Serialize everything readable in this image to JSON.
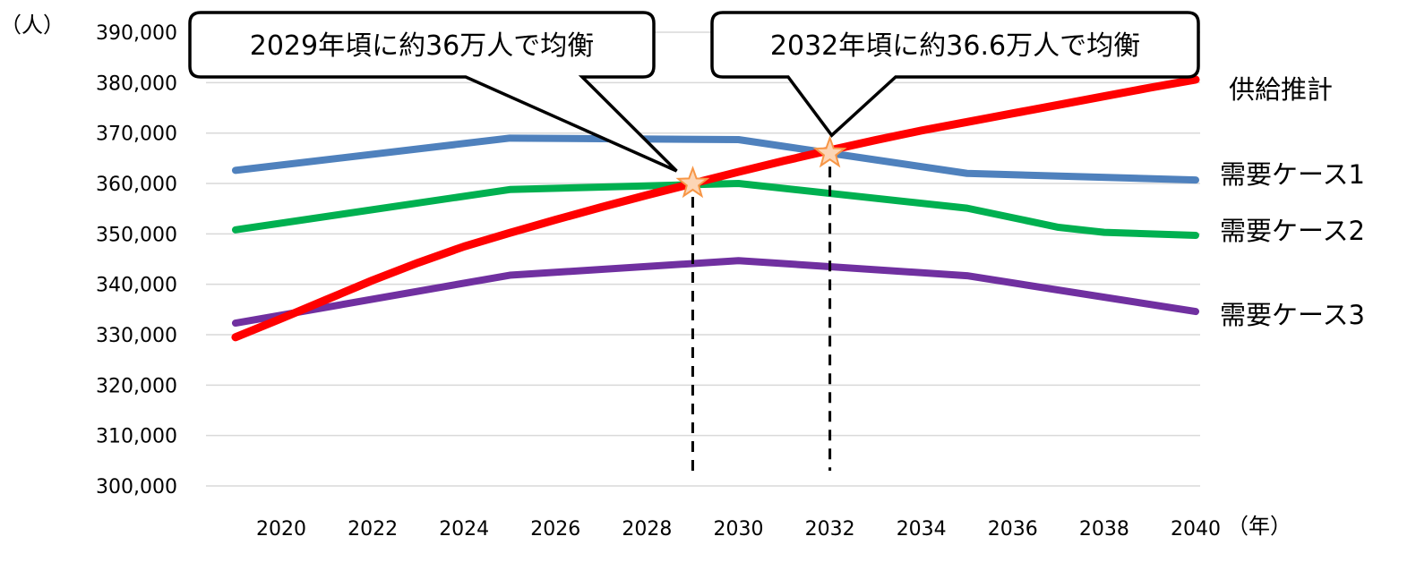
{
  "chart_data": {
    "type": "line",
    "ylabel": "（人）",
    "xlabel": "（年）",
    "ylim": [
      300000,
      390000
    ],
    "yticks": [
      "300,000",
      "310,000",
      "320,000",
      "330,000",
      "340,000",
      "350,000",
      "360,000",
      "370,000",
      "380,000",
      "390,000"
    ],
    "xticks": [
      "2020",
      "2022",
      "2024",
      "2026",
      "2028",
      "2030",
      "2032",
      "2034",
      "2036",
      "2038",
      "2040"
    ],
    "grid": true,
    "series": [
      {
        "name": "需要ケース1",
        "color": "#4F81BD",
        "x": [
          2019,
          2025,
          2030,
          2035,
          2040
        ],
        "y": [
          362600,
          369000,
          368700,
          362000,
          360700
        ]
      },
      {
        "name": "需要ケース2",
        "color": "#00B050",
        "x": [
          2019,
          2025,
          2030,
          2035,
          2037,
          2038,
          2040
        ],
        "y": [
          350800,
          358800,
          360000,
          355100,
          351300,
          350300,
          349700
        ]
      },
      {
        "name": "需要ケース3",
        "color": "#7030A0",
        "x": [
          2019,
          2025,
          2030,
          2035,
          2040
        ],
        "y": [
          332300,
          341800,
          344700,
          341700,
          334600
        ]
      },
      {
        "name": "供給推計",
        "color": "#FF0000",
        "x": [
          2019,
          2020,
          2021,
          2022,
          2023,
          2024,
          2025,
          2026,
          2027,
          2028,
          2029,
          2030,
          2031,
          2032,
          2033,
          2034,
          2035,
          2036,
          2037,
          2038,
          2039,
          2040
        ],
        "y": [
          329500,
          333200,
          337000,
          340800,
          344300,
          347500,
          350200,
          352800,
          355300,
          357700,
          360000,
          362300,
          364500,
          366600,
          368600,
          370500,
          372200,
          373900,
          375600,
          377300,
          379000,
          380600
        ]
      }
    ],
    "annotations": [
      {
        "text": "2029年頃に約36万人で均衡",
        "x": 2029,
        "y": 360000
      },
      {
        "text": "2032年頃に約36.6万人で均衡",
        "x": 2032,
        "y": 366000
      }
    ]
  }
}
